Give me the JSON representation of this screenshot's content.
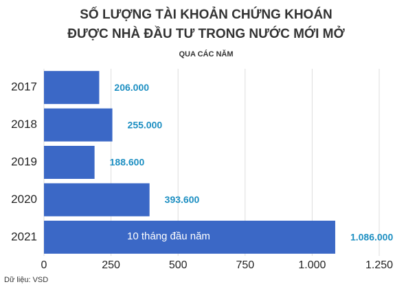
{
  "chart_data": {
    "type": "bar",
    "orientation": "horizontal",
    "title": [
      "SỐ LƯỢNG TÀI KHOẢN CHỨNG KHOÁN",
      "ĐƯỢC NHÀ ĐẦU TƯ TRONG NƯỚC MỚI MỞ"
    ],
    "subtitle": "QUA CÁC NĂM",
    "categories": [
      "2017",
      "2018",
      "2019",
      "2020",
      "2021"
    ],
    "values": [
      206,
      255,
      188.6,
      393.6,
      1086
    ],
    "value_labels": [
      "206.000",
      "255.000",
      "188.600",
      "393.600",
      "1.086.000"
    ],
    "color": "#3b68c6",
    "value_label_color": "#1d8fc2",
    "annotation": "10 tháng đầu năm",
    "source": "Dữ liệu: VSD",
    "xlim": [
      0,
      1250
    ],
    "xticks": [
      0,
      250,
      500,
      750,
      {
        "value": 1000,
        "label": "1.000"
      },
      {
        "value": 1250,
        "label": "1.250"
      }
    ],
    "grid": true
  }
}
